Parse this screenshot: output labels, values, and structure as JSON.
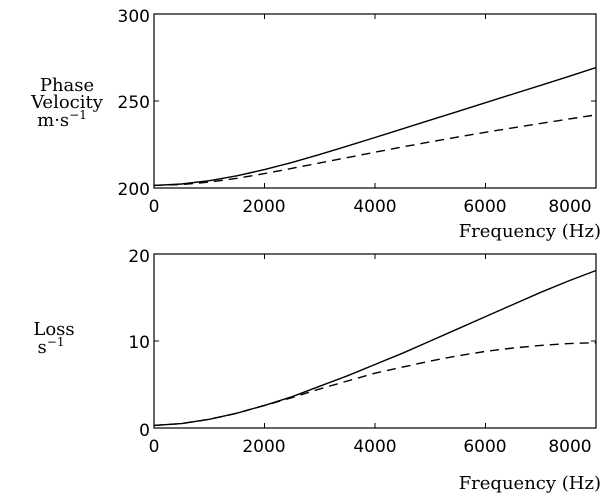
{
  "chart_data": [
    {
      "type": "line",
      "ylabel": {
        "line1": "Phase",
        "line2": "Velocity",
        "unit": "m·s",
        "unit_exp": "−1"
      },
      "xlabel": "Frequency (Hz)",
      "xlim": [
        0,
        8000
      ],
      "ylim": [
        200,
        300
      ],
      "xticks": [
        "0",
        "2000",
        "4000",
        "6000",
        "8000"
      ],
      "yticks": [
        "200",
        "250",
        "300"
      ],
      "series": [
        {
          "style": "solid",
          "x": [
            0,
            500,
            1000,
            1500,
            2000,
            2500,
            3000,
            3500,
            4000,
            4500,
            5000,
            5500,
            6000,
            6500,
            7000,
            7500,
            8000
          ],
          "y": [
            201.5,
            202.3,
            204.2,
            207.0,
            210.6,
            214.7,
            219.3,
            224.1,
            229.0,
            234.0,
            239.0,
            244.0,
            249.0,
            254.0,
            259.0,
            264.0,
            269.2
          ]
        },
        {
          "style": "dashed",
          "x": [
            0,
            500,
            1000,
            1500,
            2000,
            2500,
            3000,
            3500,
            4000,
            4500,
            5000,
            5500,
            6000,
            6500,
            7000,
            7500,
            8000
          ],
          "y": [
            201.5,
            202.0,
            203.4,
            205.6,
            208.3,
            211.3,
            214.4,
            217.5,
            220.6,
            223.6,
            226.5,
            229.3,
            232.0,
            234.6,
            237.1,
            239.6,
            242.0
          ]
        }
      ]
    },
    {
      "type": "line",
      "ylabel": {
        "line1": "Loss",
        "unit": "s",
        "unit_exp": "−1"
      },
      "xlabel": "Frequency (Hz)",
      "xlim": [
        0,
        8000
      ],
      "ylim": [
        0,
        20
      ],
      "xticks": [
        "0",
        "2000",
        "4000",
        "6000",
        "8000"
      ],
      "yticks": [
        "0",
        "10",
        "20"
      ],
      "series": [
        {
          "style": "solid",
          "x": [
            0,
            500,
            1000,
            1500,
            2000,
            2500,
            3000,
            3500,
            4000,
            4500,
            5000,
            5500,
            6000,
            6500,
            7000,
            7500,
            8000
          ],
          "y": [
            0.3,
            0.5,
            1.0,
            1.7,
            2.6,
            3.6,
            4.8,
            6.0,
            7.3,
            8.6,
            10.0,
            11.4,
            12.8,
            14.2,
            15.6,
            16.9,
            18.1
          ]
        },
        {
          "style": "dashed",
          "x": [
            0,
            500,
            1000,
            1500,
            2000,
            2500,
            3000,
            3500,
            4000,
            4500,
            5000,
            5500,
            6000,
            6500,
            7000,
            7500,
            8000
          ],
          "y": [
            0.3,
            0.5,
            1.0,
            1.7,
            2.6,
            3.5,
            4.5,
            5.4,
            6.3,
            7.0,
            7.7,
            8.3,
            8.8,
            9.2,
            9.5,
            9.7,
            9.8
          ]
        }
      ]
    }
  ]
}
